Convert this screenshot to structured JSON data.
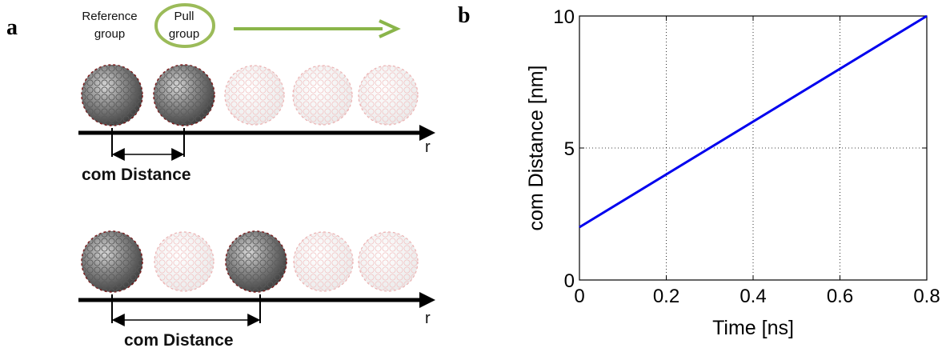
{
  "panel_a": {
    "letter": "a",
    "reference_group_line1": "Reference",
    "reference_group_line2": "group",
    "pull_group_line1": "Pull",
    "pull_group_line2": "group",
    "axis_label_top": "r",
    "axis_label_bottom": "r",
    "com_distance_top": "com Distance",
    "com_distance_bottom": "com Distance",
    "arrow_color": "#8ab54a",
    "ellipse_color": "#9bbb59"
  },
  "panel_b": {
    "letter": "b"
  },
  "chart_data": {
    "type": "line",
    "xlabel": "Time [ns]",
    "ylabel": "com Distance [nm]",
    "xlim": [
      0,
      0.8
    ],
    "ylim": [
      0,
      10
    ],
    "xticks": [
      "0",
      "0.2",
      "0.4",
      "0.6",
      "0.8"
    ],
    "yticks": [
      "0",
      "5",
      "10"
    ],
    "grid": true,
    "line_color": "#0000ee",
    "series": [
      {
        "x": [
          0,
          0.8
        ],
        "y": [
          2,
          10
        ]
      }
    ]
  }
}
